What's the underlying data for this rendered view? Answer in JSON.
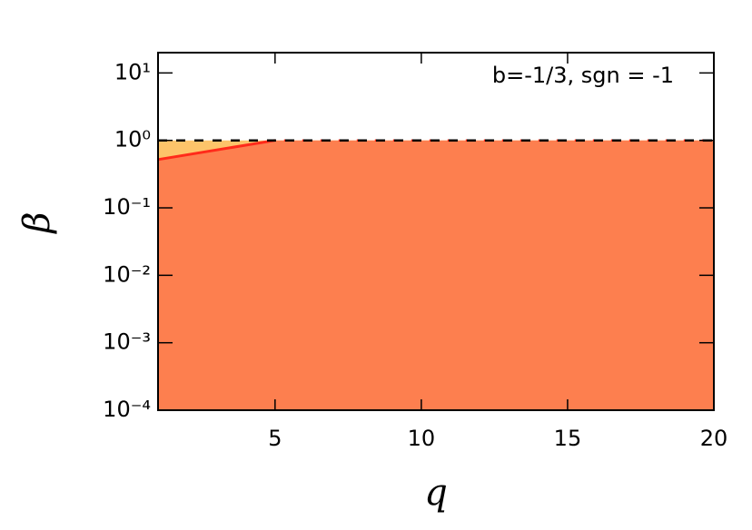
{
  "chart_data": {
    "type": "line",
    "annotation": "b=-1/3, sgn = -1",
    "xlabel": "q",
    "ylabel": "β",
    "log_y": true,
    "xlim": [
      1,
      20
    ],
    "xticks": [
      5,
      10,
      15,
      20
    ],
    "ylim": [
      0.0001,
      20
    ],
    "yticks": [
      {
        "value": 10,
        "label": "10¹"
      },
      {
        "value": 1,
        "label": "10⁰"
      },
      {
        "value": 0.1,
        "label": "10⁻¹"
      },
      {
        "value": 0.01,
        "label": "10⁻²"
      },
      {
        "value": 0.001,
        "label": "10⁻³"
      },
      {
        "value": 0.0001,
        "label": "10⁻⁴"
      }
    ],
    "series": [
      {
        "x": [
          1,
          20
        ],
        "values": [
          1,
          1
        ],
        "color": "#fdc46a",
        "style": "area"
      },
      {
        "x": [
          1,
          5,
          20
        ],
        "values": [
          0.52,
          1,
          1
        ],
        "color": "#fd7f4f",
        "style": "area"
      },
      {
        "x": [
          1,
          5
        ],
        "values": [
          0.52,
          1
        ],
        "color": "#ff2a1a",
        "style": "solid"
      },
      {
        "x": [
          5,
          20
        ],
        "values": [
          1,
          1
        ],
        "color": "#ff2a1a",
        "style": "dashed"
      },
      {
        "x": [
          1,
          20
        ],
        "values": [
          1,
          1
        ],
        "color": "#000000",
        "style": "dashed"
      }
    ]
  }
}
